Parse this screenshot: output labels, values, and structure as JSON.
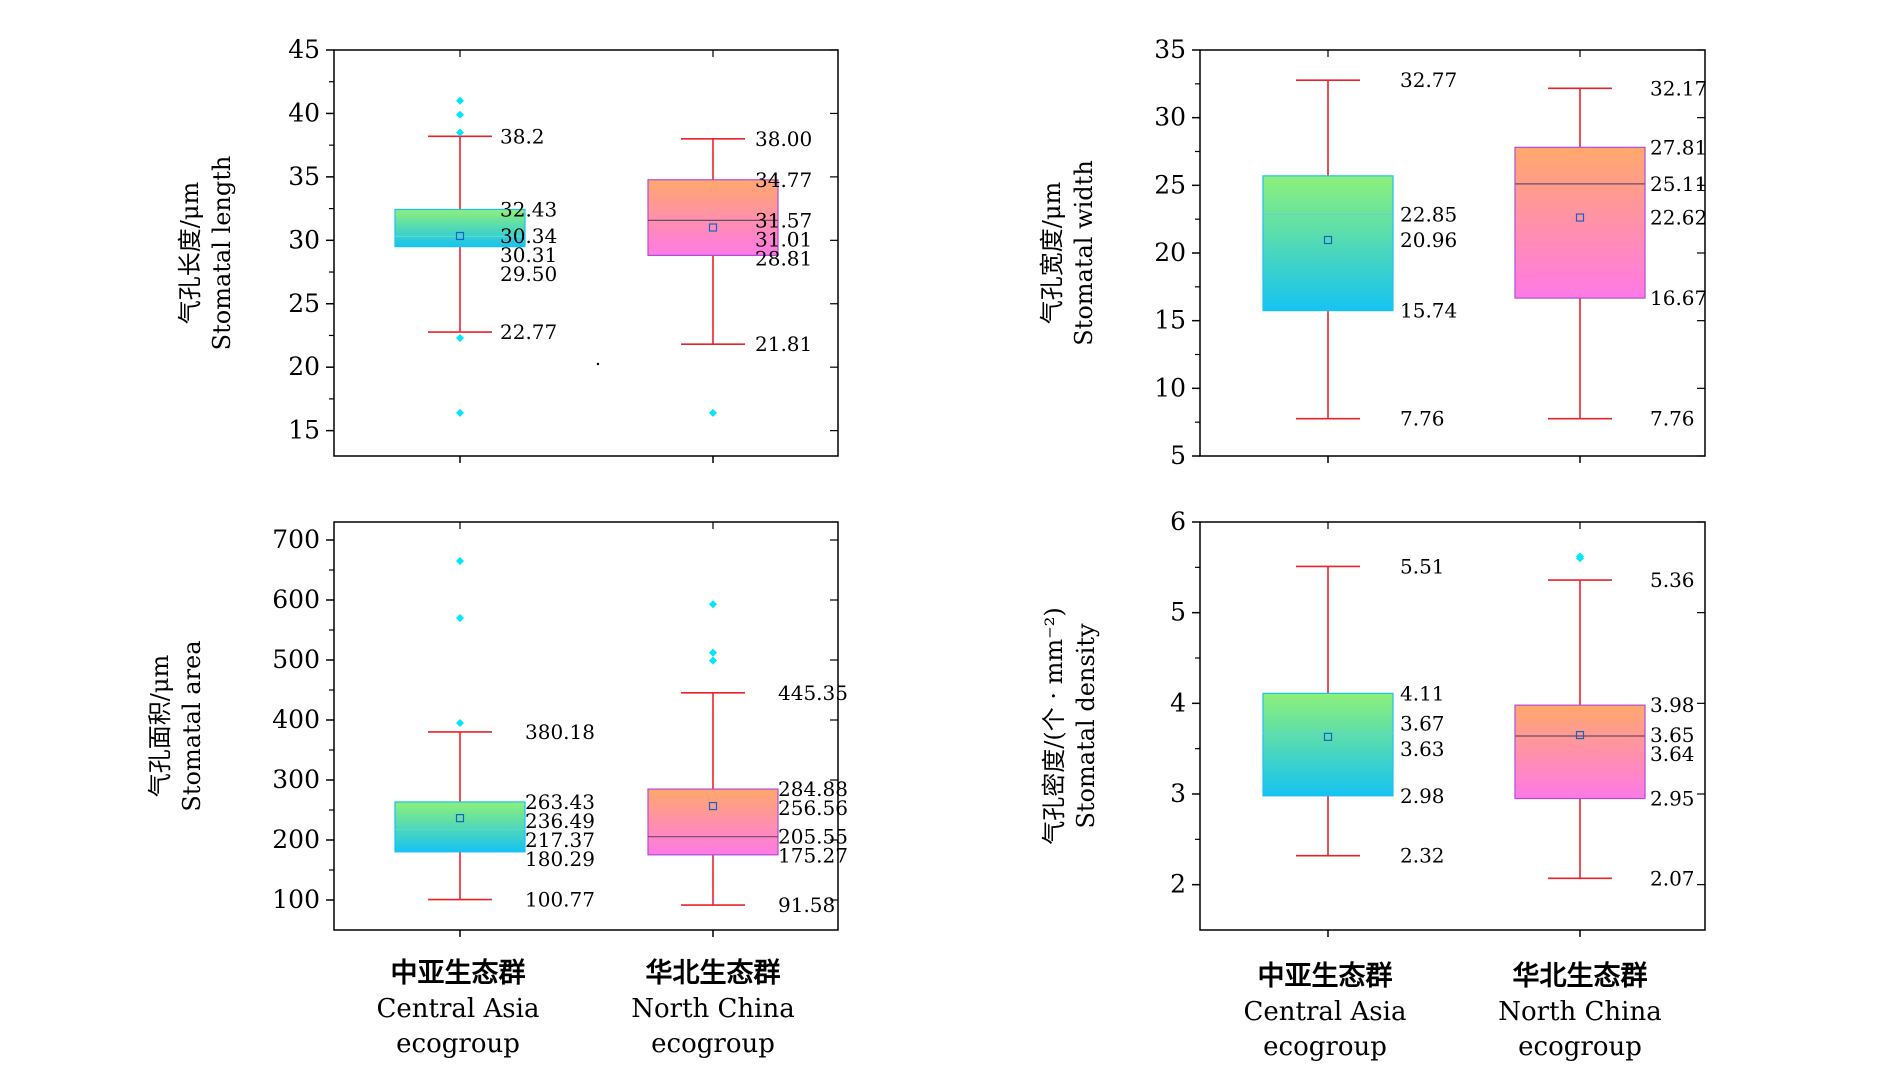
{
  "categories": [
    {
      "cn": "中亚生态群",
      "en1": "Central Asia",
      "en2": "ecogroup"
    },
    {
      "cn": "华北生态群",
      "en1": "North China",
      "en2": "ecogroup"
    }
  ],
  "colors": {
    "whisker": "#e8232b",
    "outlier": "#00e5ff",
    "mean": "#1565c0",
    "ca_top": "#8ef07a",
    "ca_bottom": "#16c3f2",
    "nc_top": "#ffa86b",
    "nc_bottom": "#ff7ae6",
    "frame": "#000000"
  },
  "chart_data": [
    {
      "type": "box",
      "ylabel_cn": "气孔长度/μm",
      "ylabel_en": "Stomatal length",
      "ylim": [
        13,
        45
      ],
      "yticks": [
        15,
        20,
        25,
        30,
        35,
        40,
        45
      ],
      "series": [
        {
          "category": "中亚生态群",
          "whisker_high": 38.2,
          "q3": 32.43,
          "mean": 30.34,
          "median": 30.31,
          "q1": 29.5,
          "whisker_low": 22.77,
          "outliers": [
            41.0,
            39.9,
            38.5,
            22.3,
            16.4
          ],
          "labels": [
            "38.2",
            "32.43",
            "30.34",
            "30.31",
            "29.50",
            "22.77"
          ]
        },
        {
          "category": "华北生态群",
          "whisker_high": 38.0,
          "q3": 34.77,
          "mean": 31.01,
          "median": 31.57,
          "q1": 28.81,
          "whisker_low": 21.81,
          "outliers": [
            16.4
          ],
          "labels": [
            "38.00",
            "34.77",
            "31.57",
            "31.01",
            "28.81",
            "21.81"
          ]
        }
      ]
    },
    {
      "type": "box",
      "ylabel_cn": "气孔宽度/μm",
      "ylabel_en": "Stomatal width",
      "ylim": [
        5,
        35
      ],
      "yticks": [
        5,
        10,
        15,
        20,
        25,
        30,
        35
      ],
      "series": [
        {
          "category": "中亚生态群",
          "whisker_high": 32.77,
          "q3": 25.7,
          "mean": 20.96,
          "median": 22.85,
          "q1": 15.74,
          "whisker_low": 7.76,
          "outliers": [],
          "labels": [
            "32.77",
            "22.85",
            "20.96",
            "15.74",
            "7.76"
          ]
        },
        {
          "category": "华北生态群",
          "whisker_high": 32.17,
          "q3": 27.81,
          "mean": 22.62,
          "median": 25.11,
          "q1": 16.67,
          "whisker_low": 7.76,
          "outliers": [],
          "labels": [
            "32.17",
            "27.81",
            "25.11",
            "22.62",
            "16.67",
            "7.76"
          ]
        }
      ]
    },
    {
      "type": "box",
      "ylabel_cn": "气孔面积/μm",
      "ylabel_en": "Stomatal area",
      "ylim": [
        50,
        730
      ],
      "yticks": [
        100,
        200,
        300,
        400,
        500,
        600,
        700
      ],
      "series": [
        {
          "category": "中亚生态群",
          "whisker_high": 380.18,
          "q3": 263.43,
          "mean": 236.49,
          "median": 217.37,
          "q1": 180.29,
          "whisker_low": 100.77,
          "outliers": [
            665,
            570,
            395
          ],
          "labels": [
            "380.18",
            "263.43",
            "236.49",
            "217.37",
            "180.29",
            "100.77"
          ]
        },
        {
          "category": "华北生态群",
          "whisker_high": 445.35,
          "q3": 284.88,
          "mean": 256.56,
          "median": 205.55,
          "q1": 175.27,
          "whisker_low": 91.58,
          "outliers": [
            593,
            512,
            499
          ],
          "labels": [
            "445.35",
            "284.88",
            "256.56",
            "205.55",
            "175.27",
            "91.58"
          ]
        }
      ]
    },
    {
      "type": "box",
      "ylabel_cn": "气孔密度/(个 · mm⁻²)",
      "ylabel_en": "Stomatal density",
      "ylim": [
        1.5,
        6
      ],
      "yticks": [
        2,
        3,
        4,
        5,
        6
      ],
      "series": [
        {
          "category": "中亚生态群",
          "whisker_high": 5.51,
          "q3": 4.11,
          "mean": 3.63,
          "median": 3.67,
          "q1": 2.98,
          "whisker_low": 2.32,
          "outliers": [],
          "labels": [
            "5.51",
            "4.11",
            "3.67",
            "3.63",
            "2.98",
            "2.32"
          ]
        },
        {
          "category": "华北生态群",
          "whisker_high": 5.36,
          "q3": 3.98,
          "mean": 3.65,
          "median": 3.64,
          "q1": 2.95,
          "whisker_low": 2.07,
          "outliers": [
            5.62,
            5.6
          ],
          "labels": [
            "5.36",
            "3.98",
            "3.65",
            "3.64",
            "2.95",
            "2.07"
          ]
        }
      ]
    }
  ]
}
